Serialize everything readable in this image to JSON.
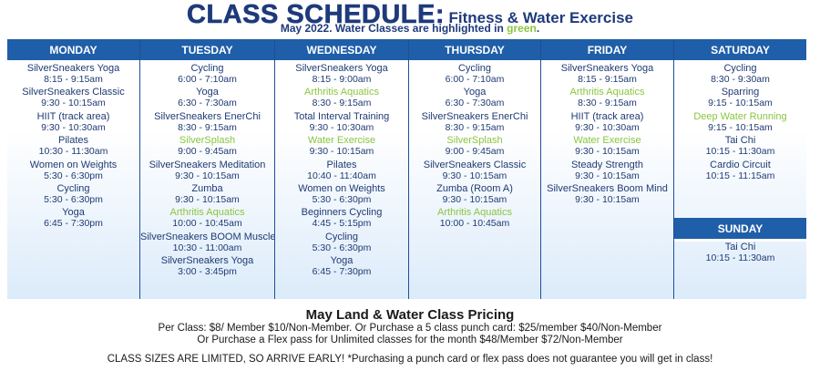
{
  "header": {
    "title": "CLASS SCHEDULE:",
    "subtitle_tag": "Fitness & Water Exercise",
    "subtitle_prefix": "May 2022. Water Classes are highlighted in ",
    "subtitle_green": "green",
    "subtitle_suffix": "."
  },
  "colors": {
    "header_blue": "#1f5ea8",
    "text_blue": "#1f3a73",
    "water_green": "#8bc53f"
  },
  "days": [
    {
      "name": "MONDAY",
      "classes": [
        {
          "name": "SilverSneakers Yoga",
          "time": "8:15 - 9:15am",
          "water": false
        },
        {
          "name": "SilverSneakers Classic",
          "time": "9:30 - 10:15am",
          "water": false
        },
        {
          "name": "HIIT (track area)",
          "time": "9:30 - 10:30am",
          "water": false
        },
        {
          "name": "Pilates",
          "time": "10:30 - 11:30am",
          "water": false
        },
        {
          "name": "Women on Weights",
          "time": "5:30 - 6:30pm",
          "water": false
        },
        {
          "name": "Cycling",
          "time": "5:30 - 6:30pm",
          "water": false
        },
        {
          "name": "Yoga",
          "time": "6:45 - 7:30pm",
          "water": false
        }
      ]
    },
    {
      "name": "TUESDAY",
      "classes": [
        {
          "name": "Cycling",
          "time": "6:00 - 7:10am",
          "water": false
        },
        {
          "name": "Yoga",
          "time": "6:30 - 7:30am",
          "water": false
        },
        {
          "name": "SilverSneakers EnerChi",
          "time": "8:30 - 9:15am",
          "water": false
        },
        {
          "name": "SilverSplash",
          "time": "9:00 - 9:45am",
          "water": true
        },
        {
          "name": "SilverSneakers Meditation",
          "time": "9:30 - 10:15am",
          "water": false
        },
        {
          "name": "Zumba",
          "time": "9:30 - 10:15am",
          "water": false
        },
        {
          "name": "Arthritis Aquatics",
          "time": "10:00 - 10:45am",
          "water": true
        },
        {
          "name": "SilverSneakers BOOM Muscle",
          "time": "10:30 - 11:00am",
          "water": false
        },
        {
          "name": "SilverSneakers Yoga",
          "time": "3:00 - 3:45pm",
          "water": false
        }
      ]
    },
    {
      "name": "WEDNESDAY",
      "classes": [
        {
          "name": "SilverSneakers Yoga",
          "time": "8:15 - 9:00am",
          "water": false
        },
        {
          "name": "Arthritis Aquatics",
          "time": "8:30 - 9:15am",
          "water": true
        },
        {
          "name": "Total Interval Training",
          "time": "9:30 - 10:30am",
          "water": false
        },
        {
          "name": "Water Exercise",
          "time": "9:30 - 10:15am",
          "water": true
        },
        {
          "name": "Pilates",
          "time": "10:40 - 11:40am",
          "water": false
        },
        {
          "name": "Women on Weights",
          "time": "5:30 - 6:30pm",
          "water": false
        },
        {
          "name": "Beginners Cycling",
          "time": "4:45 - 5:15pm",
          "water": false
        },
        {
          "name": "Cycling",
          "time": "5:30 - 6:30pm",
          "water": false
        },
        {
          "name": "Yoga",
          "time": "6:45 - 7:30pm",
          "water": false
        }
      ]
    },
    {
      "name": "THURSDAY",
      "classes": [
        {
          "name": "Cycling",
          "time": "6:00 - 7:10am",
          "water": false
        },
        {
          "name": "Yoga",
          "time": "6:30 - 7:30am",
          "water": false
        },
        {
          "name": "SilverSneakers EnerChi",
          "time": "8:30 - 9:15am",
          "water": false
        },
        {
          "name": "SilverSplash",
          "time": "9:00 - 9:45am",
          "water": true
        },
        {
          "name": "SilverSneakers Classic",
          "time": "9:30 - 10:15am",
          "water": false
        },
        {
          "name": "Zumba (Room A)",
          "time": "9:30 - 10:15am",
          "water": false
        },
        {
          "name": "Arthritis Aquatics",
          "time": "10:00 - 10:45am",
          "water": true
        }
      ]
    },
    {
      "name": "FRIDAY",
      "classes": [
        {
          "name": "SilverSneakers Yoga",
          "time": "8:15 - 9:15am",
          "water": false
        },
        {
          "name": "Arthritis Aquatics",
          "time": "8:30 - 9:15am",
          "water": true
        },
        {
          "name": "HIIT (track area)",
          "time": "9:30 - 10:30am",
          "water": false
        },
        {
          "name": "Water Exercise",
          "time": "9:30 - 10:15am",
          "water": true
        },
        {
          "name": "Steady Strength",
          "time": "9:30 - 10:15am",
          "water": false
        },
        {
          "name": "SilverSneakers Boom Mind",
          "time": "9:30 - 10:15am",
          "water": false
        }
      ]
    },
    {
      "name": "SATURDAY",
      "classes": [
        {
          "name": "Cycling",
          "time": "8:30 - 9:30am",
          "water": false
        },
        {
          "name": "Sparring",
          "time": "9:15 - 10:15am",
          "water": false
        },
        {
          "name": "Deep Water Running",
          "time": "9:15 - 10:15am",
          "water": true
        },
        {
          "name": "Tai Chi",
          "time": "10:15 - 11:30am",
          "water": false
        },
        {
          "name": "Cardio Circuit",
          "time": "10:15 - 11:15am",
          "water": false
        }
      ]
    },
    {
      "name": "SUNDAY",
      "classes": [
        {
          "name": "Tai Chi",
          "time": "10:15 - 11:30am",
          "water": false
        }
      ]
    }
  ],
  "pricing": {
    "title": "May Land & Water Class Pricing",
    "line1": "Per Class: $8/ Member  $10/Non-Member. Or Purchase a 5 class punch card: $25/member $40/Non-Member",
    "line2": "Or Purchase a Flex pass for Unlimited classes for the month $48/Member $72/Non-Member"
  },
  "footer": "CLASS SIZES ARE LIMITED, SO ARRIVE EARLY! *Purchasing a punch card or flex pass does not guarantee you will get in class!"
}
